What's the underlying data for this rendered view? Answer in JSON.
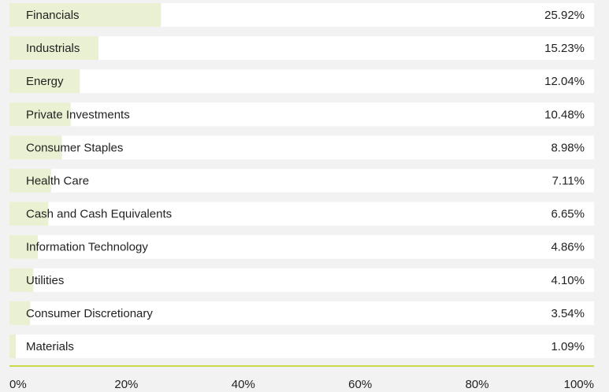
{
  "chart_data": {
    "type": "bar",
    "orientation": "horizontal",
    "categories": [
      "Financials",
      "Industrials",
      "Energy",
      "Private Investments",
      "Consumer Staples",
      "Health Care",
      "Cash and Cash Equivalents",
      "Information Technology",
      "Utilities",
      "Consumer Discretionary",
      "Materials"
    ],
    "values": [
      25.92,
      15.23,
      12.04,
      10.48,
      8.98,
      7.11,
      6.65,
      4.86,
      4.1,
      3.54,
      1.09
    ],
    "value_labels": [
      "25.92%",
      "15.23%",
      "12.04%",
      "10.48%",
      "8.98%",
      "7.11%",
      "6.65%",
      "4.86%",
      "4.10%",
      "3.54%",
      "1.09%"
    ],
    "color": "#e9f1d2",
    "axis_color": "#c9d94a",
    "xlim": [
      0,
      100
    ],
    "xticks": [
      {
        "value": 0,
        "label": "0%"
      },
      {
        "value": 20,
        "label": "20%"
      },
      {
        "value": 40,
        "label": "40%"
      },
      {
        "value": 60,
        "label": "60%"
      },
      {
        "value": 80,
        "label": "80%"
      },
      {
        "value": 100,
        "label": "100%"
      }
    ]
  }
}
